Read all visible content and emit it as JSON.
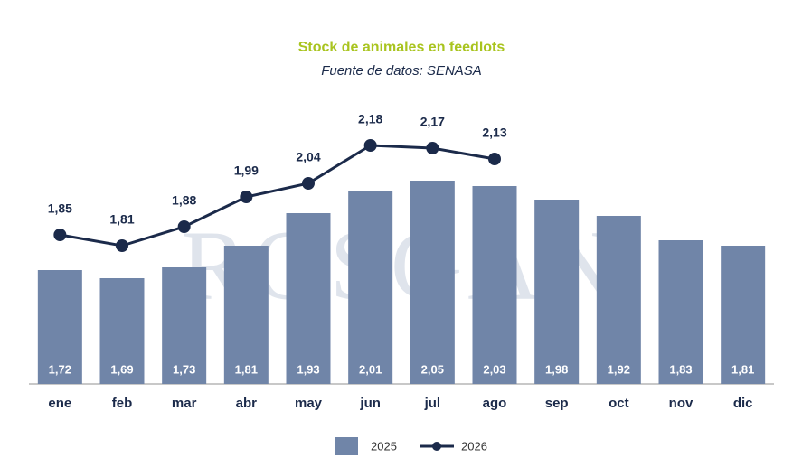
{
  "chart_data": {
    "type": "bar-line",
    "title": "Stock de animales en feedlots",
    "subtitle": "Fuente de datos: SENASA",
    "watermark": "ROSGAN",
    "categories": [
      "ene",
      "feb",
      "mar",
      "abr",
      "may",
      "jun",
      "jul",
      "ago",
      "sep",
      "oct",
      "nov",
      "dic"
    ],
    "ylim": [
      1.3,
      2.35
    ],
    "series": [
      {
        "name": "2025",
        "type": "bar",
        "color": "#7085a8",
        "values": [
          1.72,
          1.69,
          1.73,
          1.81,
          1.93,
          2.01,
          2.05,
          2.03,
          1.98,
          1.92,
          1.83,
          1.81
        ],
        "value_labels": [
          "1,72",
          "1,69",
          "1,73",
          "1,81",
          "1,93",
          "2,01",
          "2,05",
          "2,03",
          "1,98",
          "1,92",
          "1,83",
          "1,81"
        ]
      },
      {
        "name": "2026",
        "type": "line",
        "color": "#1b2a4a",
        "values": [
          1.85,
          1.81,
          1.88,
          1.99,
          2.04,
          2.18,
          2.17,
          2.13,
          null,
          null,
          null,
          null
        ],
        "value_labels": [
          "1,85",
          "1,81",
          "1,88",
          "1,99",
          "2,04",
          "2,18",
          "2,17",
          "2,13",
          null,
          null,
          null,
          null
        ]
      }
    ]
  }
}
